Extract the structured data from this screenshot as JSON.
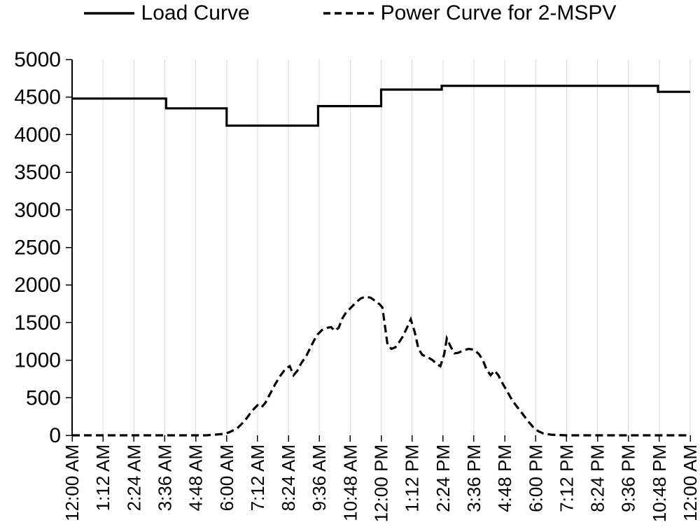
{
  "chart_data": {
    "type": "line",
    "title": "",
    "legend_position": "top",
    "grid": "vertical-only",
    "xlabel": "",
    "ylabel": "",
    "xlim_hours": [
      0,
      24
    ],
    "ylim": [
      0,
      5000
    ],
    "y_ticks": [
      0,
      500,
      1000,
      1500,
      2000,
      2500,
      3000,
      3500,
      4000,
      4500,
      5000
    ],
    "x_ticks": [
      {
        "hour": 0,
        "label": "12:00 AM"
      },
      {
        "hour": 1.2,
        "label": "1:12 AM"
      },
      {
        "hour": 2.4,
        "label": "2:24 AM"
      },
      {
        "hour": 3.6,
        "label": "3:36 AM"
      },
      {
        "hour": 4.8,
        "label": "4:48 AM"
      },
      {
        "hour": 6,
        "label": "6:00 AM"
      },
      {
        "hour": 7.2,
        "label": "7:12 AM"
      },
      {
        "hour": 8.4,
        "label": "8:24 AM"
      },
      {
        "hour": 9.6,
        "label": "9:36 AM"
      },
      {
        "hour": 10.8,
        "label": "10:48 AM"
      },
      {
        "hour": 12,
        "label": "12:00 PM"
      },
      {
        "hour": 13.2,
        "label": "1:12 PM"
      },
      {
        "hour": 14.4,
        "label": "2:24 PM"
      },
      {
        "hour": 15.6,
        "label": "3:36 PM"
      },
      {
        "hour": 16.8,
        "label": "4:48 PM"
      },
      {
        "hour": 18,
        "label": "6:00 PM"
      },
      {
        "hour": 19.2,
        "label": "7:12 PM"
      },
      {
        "hour": 20.4,
        "label": "8:24 PM"
      },
      {
        "hour": 21.6,
        "label": "9:36 PM"
      },
      {
        "hour": 22.8,
        "label": "10:48 PM"
      },
      {
        "hour": 24,
        "label": "12:00 AM"
      }
    ],
    "series": [
      {
        "name": "Load Curve",
        "line_style": "solid",
        "color": "#000000",
        "points_hour_kw": [
          [
            0,
            4480
          ],
          [
            3.65,
            4480
          ],
          [
            3.65,
            4350
          ],
          [
            6,
            4350
          ],
          [
            6,
            4120
          ],
          [
            9.55,
            4120
          ],
          [
            9.55,
            4380
          ],
          [
            12,
            4380
          ],
          [
            12,
            4600
          ],
          [
            14.35,
            4600
          ],
          [
            14.35,
            4650
          ],
          [
            22.75,
            4650
          ],
          [
            22.75,
            4570
          ],
          [
            24,
            4570
          ]
        ]
      },
      {
        "name": "Power Curve for 2-MSPV",
        "line_style": "dashed",
        "color": "#000000",
        "points_hour_kw": [
          [
            0,
            0
          ],
          [
            0.6,
            0
          ],
          [
            1.2,
            0
          ],
          [
            1.8,
            0
          ],
          [
            2.4,
            0
          ],
          [
            3,
            0
          ],
          [
            3.6,
            0
          ],
          [
            4.2,
            0
          ],
          [
            4.8,
            0
          ],
          [
            5.2,
            0
          ],
          [
            5.6,
            10
          ],
          [
            5.9,
            20
          ],
          [
            6.1,
            40
          ],
          [
            6.4,
            90
          ],
          [
            6.7,
            190
          ],
          [
            7,
            330
          ],
          [
            7.2,
            400
          ],
          [
            7.35,
            370
          ],
          [
            7.5,
            430
          ],
          [
            7.7,
            560
          ],
          [
            7.9,
            690
          ],
          [
            8.1,
            800
          ],
          [
            8.3,
            890
          ],
          [
            8.45,
            920
          ],
          [
            8.6,
            800
          ],
          [
            8.75,
            860
          ],
          [
            8.9,
            960
          ],
          [
            9.1,
            1060
          ],
          [
            9.3,
            1200
          ],
          [
            9.5,
            1330
          ],
          [
            9.7,
            1400
          ],
          [
            9.9,
            1430
          ],
          [
            10.05,
            1440
          ],
          [
            10.2,
            1390
          ],
          [
            10.35,
            1430
          ],
          [
            10.5,
            1560
          ],
          [
            10.65,
            1640
          ],
          [
            10.8,
            1690
          ],
          [
            11,
            1760
          ],
          [
            11.2,
            1820
          ],
          [
            11.4,
            1845
          ],
          [
            11.6,
            1830
          ],
          [
            11.8,
            1780
          ],
          [
            11.95,
            1740
          ],
          [
            12.05,
            1700
          ],
          [
            12.15,
            1450
          ],
          [
            12.25,
            1200
          ],
          [
            12.4,
            1150
          ],
          [
            12.55,
            1170
          ],
          [
            12.7,
            1240
          ],
          [
            12.85,
            1320
          ],
          [
            13,
            1430
          ],
          [
            13.15,
            1545
          ],
          [
            13.3,
            1380
          ],
          [
            13.45,
            1150
          ],
          [
            13.6,
            1070
          ],
          [
            13.8,
            1040
          ],
          [
            14,
            1000
          ],
          [
            14.15,
            950
          ],
          [
            14.3,
            920
          ],
          [
            14.45,
            1080
          ],
          [
            14.55,
            1290
          ],
          [
            14.7,
            1180
          ],
          [
            14.85,
            1090
          ],
          [
            15,
            1100
          ],
          [
            15.2,
            1130
          ],
          [
            15.4,
            1150
          ],
          [
            15.6,
            1140
          ],
          [
            15.8,
            1080
          ],
          [
            15.95,
            1000
          ],
          [
            16.1,
            870
          ],
          [
            16.25,
            800
          ],
          [
            16.4,
            860
          ],
          [
            16.55,
            800
          ],
          [
            16.7,
            700
          ],
          [
            16.9,
            580
          ],
          [
            17.1,
            460
          ],
          [
            17.3,
            370
          ],
          [
            17.5,
            280
          ],
          [
            17.7,
            190
          ],
          [
            17.9,
            110
          ],
          [
            18.1,
            55
          ],
          [
            18.3,
            25
          ],
          [
            18.6,
            8
          ],
          [
            19.2,
            0
          ],
          [
            19.8,
            0
          ],
          [
            20.4,
            0
          ],
          [
            21,
            0
          ],
          [
            21.6,
            0
          ],
          [
            22.2,
            0
          ],
          [
            22.8,
            0
          ],
          [
            23.4,
            0
          ],
          [
            24,
            0
          ]
        ]
      }
    ]
  },
  "colors": {
    "grid": "#d9d9d9",
    "axis": "#000000",
    "text": "#000000"
  }
}
